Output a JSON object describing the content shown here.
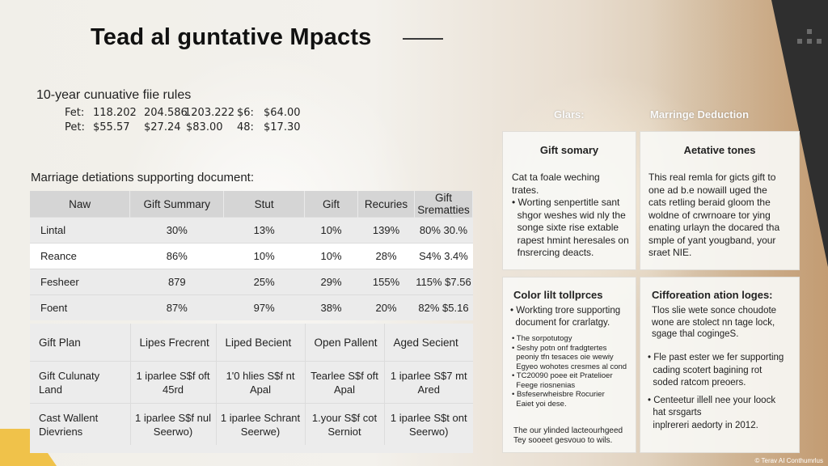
{
  "title": "Tead al guntative Mpacts",
  "cumulative": {
    "heading": "10-year cunuative fiie rules",
    "rows": [
      [
        "Fet:",
        "118.202",
        "204.586",
        "1203.222",
        "$6:",
        "$64.00"
      ],
      [
        "Pet:",
        "$55.57",
        "$27.24",
        "$83.00",
        "48:",
        "$17.30"
      ]
    ]
  },
  "main_table": {
    "heading": "Marriage detiations supporting document:",
    "columns": [
      "Naw",
      "Gift Summary",
      "Stut",
      "Gift",
      "Recuries",
      "Gift Srematties"
    ],
    "rows": [
      [
        "Lintal",
        "30%",
        "13%",
        "10%",
        "139%",
        "80%  30.%"
      ],
      [
        "Reance",
        "86%",
        "10%",
        "10%",
        "28%",
        "S4%  3.4%"
      ],
      [
        "Fesheer",
        "879",
        "25%",
        "29%",
        "155%",
        "115%  $7.56"
      ],
      [
        "Foent",
        "87%",
        "97%",
        "38%",
        "20%",
        "82%  $5.16"
      ]
    ]
  },
  "plan_table": {
    "columns": [
      "Gift Plan",
      "Lipes Frecrent",
      "Liped Becient",
      "Open Pallent",
      "Aged Secient"
    ],
    "rows": [
      [
        "Gift Culunaty\nLand",
        "1 iparlee S$f oft\n45rd",
        "1'0 hlies S$f nt\nApal",
        "Tearlee S$f oft\nApal",
        "1 iparlee S$7 mt\nAred"
      ],
      [
        "Cast Wallent\nDievriens",
        "1 iparlee S$f nul\nSeerwo)",
        "1 iparlee Schrant\nSeerwe)",
        "1.your S$f cot\nSerniot",
        "1 iparlee S$t ont\nSeerwo)"
      ]
    ]
  },
  "right": {
    "col1_header": "Glars:",
    "col2_header": "Marringe Deduction",
    "card_gift": {
      "title": "Gift somary",
      "lines": [
        "Cat ta foale weching",
        "trates.",
        "• Worting senpertitle sant",
        "  shgor weshes wid nly the",
        "  songe sixte rise extable",
        "  rapest hmint heresales on",
        "  fnsrercing deacts."
      ]
    },
    "card_relative": {
      "title": "Aetative tones",
      "lines": [
        "This real remla for gicts gift to",
        "one ad b.e nowaill uged the",
        "cats retling beraid gloom the",
        "woldne of crwrnoare tor ying",
        "enating urlayn the docared tha",
        "smple of yant yougband, your",
        "sraet NIE."
      ]
    },
    "card_color": {
      "title": "Color lilt tollprces",
      "lines": [
        "• Workting trore supporting",
        "  document for crarlatgy."
      ],
      "small_lines": [
        "• The sorpotutogy",
        "• Seshy potn onf fradgtertes",
        "  peoniy tfn tesaces oie wewiy",
        "  Egyeo wohotes cresmes al cond",
        "• TC20090 poee eit Pratelioer",
        "  Feege riosnenias",
        "• Bsfeserwheisbre Rocurier",
        "  Eaiet yoi dese."
      ],
      "footer_lines": [
        "The our ylinded lacteourhgeed",
        "Tey sooeet gesvouo to wils."
      ]
    },
    "card_cifforeation": {
      "title": "Cifforeation ation loges:",
      "lines": [
        "Tlos slie wete sonce choudote",
        "wone are stolect nn tage lock,",
        "sgage thal cogingeS."
      ],
      "bullets": [
        "• Fle past ester we fer supporting",
        "  cading scotert bagining rot",
        "  soded ratcom preoers.",
        "• Centeetur illell nee your loock",
        "  hat srsgarts",
        "  inplrereri aedorty in 2012."
      ]
    },
    "credit": "© Terav AI Conthumrlus"
  }
}
